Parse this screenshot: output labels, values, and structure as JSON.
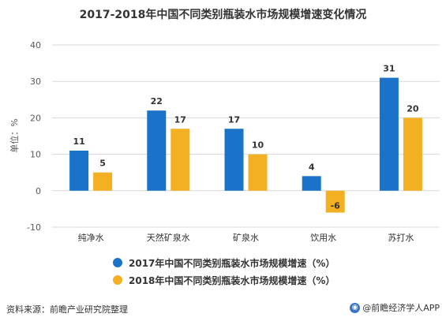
{
  "title": "2017-2018年中国不同类别瓶装水市场规模增速变化情况",
  "colors": {
    "series_2017": "#1a73c8",
    "series_2018": "#f2b022",
    "grid": "#d9d9d9",
    "axis_text": "#595959"
  },
  "source": "资料来源：前瞻产业研究院整理",
  "brand": "@前瞻经济学人APP",
  "brand_icon": "camera-icon",
  "chart_data": {
    "type": "bar",
    "title": "2017-2018年中国不同类别瓶装水市场规模增速变化情况",
    "ylabel": "单位：%",
    "xlabel": "",
    "ylim": [
      -10,
      40
    ],
    "yticks": [
      -10,
      0,
      10,
      20,
      30,
      40
    ],
    "categories": [
      "纯净水",
      "天然矿泉水",
      "矿泉水",
      "饮用水",
      "苏打水"
    ],
    "series": [
      {
        "name": "2017年中国不同类别瓶装水市场规模增速（%）",
        "values": [
          11,
          22,
          17,
          4,
          31
        ],
        "color": "#1a73c8"
      },
      {
        "name": "2018年中国不同类别瓶装水市场规模增速（%）",
        "values": [
          5,
          17,
          10,
          -6,
          20
        ],
        "color": "#f2b022"
      }
    ],
    "grid": true,
    "legend_position": "bottom"
  }
}
